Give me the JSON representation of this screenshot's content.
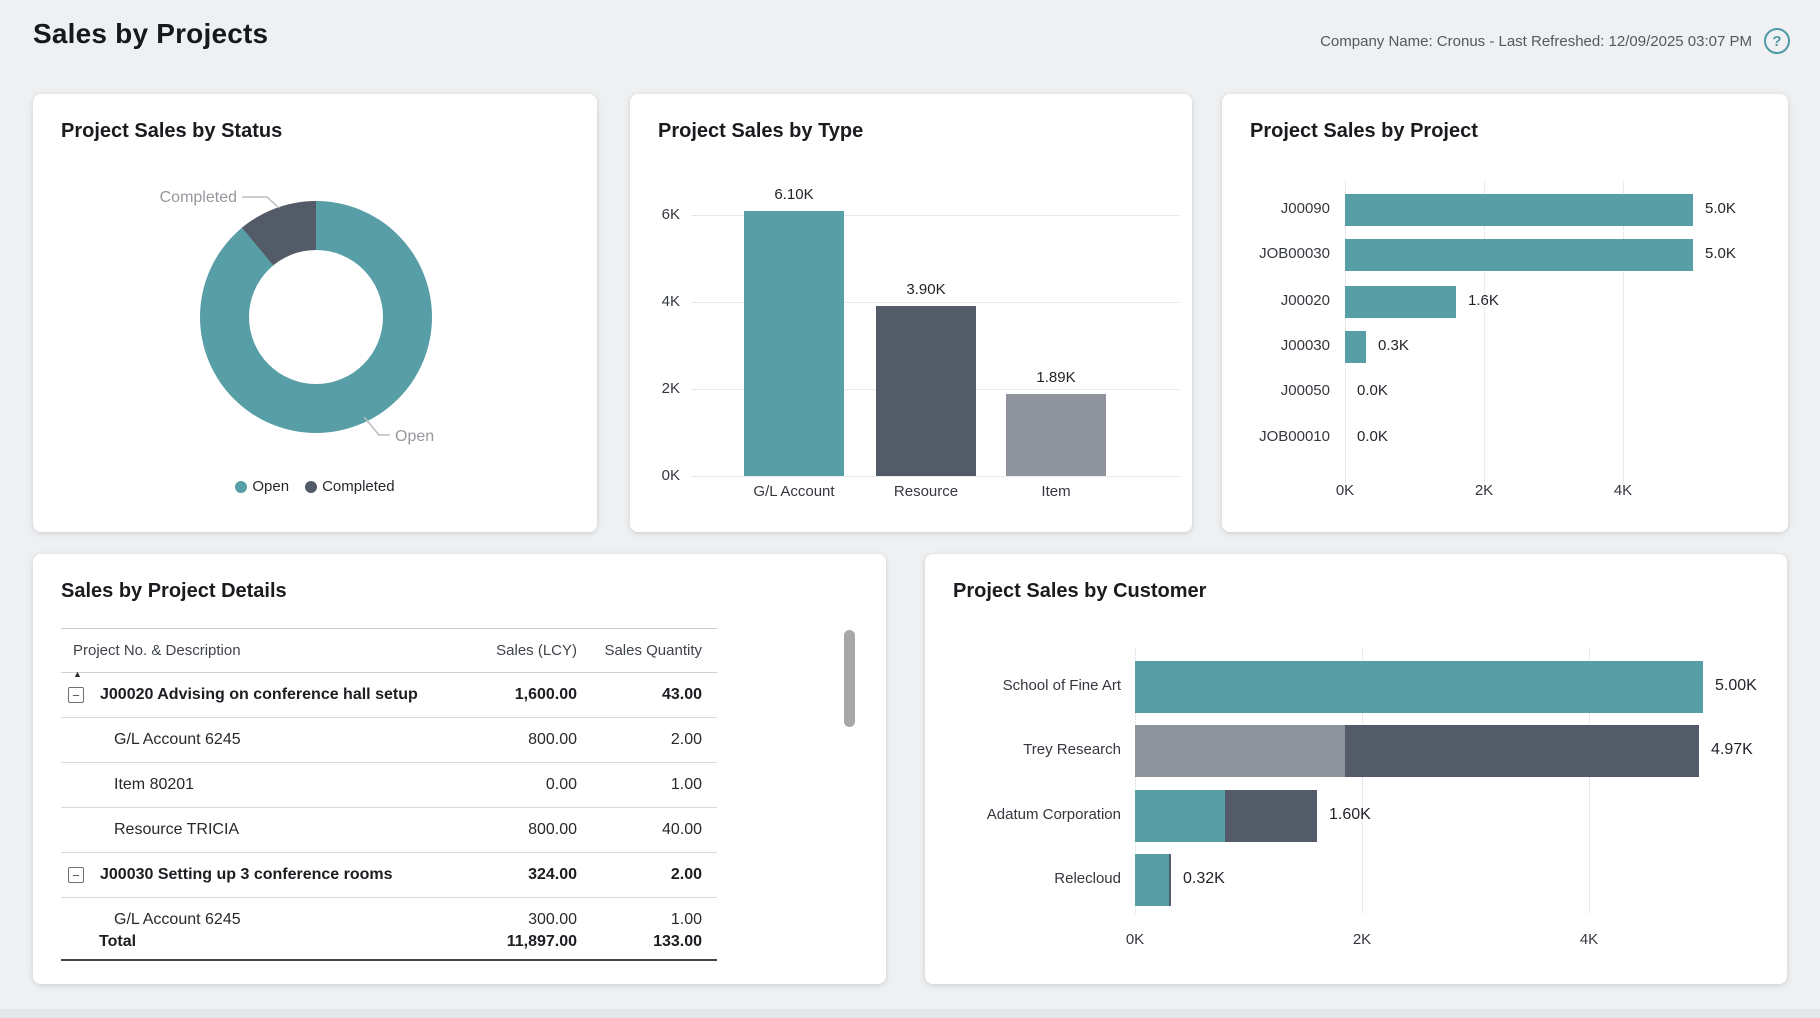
{
  "header": {
    "title": "Sales by Projects",
    "meta": "Company Name: Cronus - Last Refreshed: 12/09/2025 03:07 PM",
    "help_icon": "question-mark-circle-icon"
  },
  "colors": {
    "teal": "#579EA7",
    "dark_slate": "#535A68",
    "gray": "#8F939E",
    "page_background": "#EEF0F2",
    "card_background": "#FFFFFF",
    "grid_line": "#D5D7DA",
    "callout_line": "#BABCBF"
  },
  "chart_data": [
    {
      "id": "project-sales-by-status",
      "type": "pie",
      "title": "Project Sales by Status",
      "labels": [
        "Open",
        "Completed"
      ],
      "values_percent": [
        89,
        11
      ],
      "slice_colors": [
        "teal",
        "dark_slate"
      ],
      "legend": [
        "Open",
        "Completed"
      ],
      "legend_position": "bottom",
      "callout_labels": [
        "Completed",
        "Open"
      ]
    },
    {
      "id": "project-sales-by-type",
      "type": "bar",
      "title": "Project Sales by Type",
      "categories": [
        "G/L Account",
        "Resource",
        "Item"
      ],
      "values": [
        6100,
        3900,
        1890
      ],
      "value_labels": [
        "6.10K",
        "3.90K",
        "1.89K"
      ],
      "bar_colors": [
        "teal",
        "dark_slate",
        "gray"
      ],
      "yticks": [
        "0K",
        "2K",
        "4K",
        "6K"
      ],
      "ylim": [
        0,
        6600
      ],
      "grid": "dotted-horizontal"
    },
    {
      "id": "project-sales-by-project",
      "type": "bar-horizontal",
      "title": "Project Sales by Project",
      "categories": [
        "J00090",
        "JOB00030",
        "J00020",
        "J00030",
        "J00050",
        "JOB00010"
      ],
      "values": [
        5000,
        5000,
        1600,
        300,
        0,
        0
      ],
      "value_labels": [
        "5.0K",
        "5.0K",
        "1.6K",
        "0.3K",
        "0.0K",
        "0.0K"
      ],
      "bar_color": "teal",
      "xticks": [
        "0K",
        "2K",
        "4K"
      ],
      "xlim": [
        0,
        6200
      ],
      "grid": "dotted-vertical"
    },
    {
      "id": "sales-by-project-details",
      "type": "table",
      "title": "Sales by Project Details",
      "columns": [
        "Project No. & Description",
        "Sales (LCY)",
        "Sales Quantity"
      ],
      "sort_indicator": {
        "column": "Project No. & Description",
        "direction": "ascending",
        "glyph": "▲"
      },
      "rows": [
        {
          "level": "group",
          "expander": "collapse",
          "description": "J00020 Advising on conference hall setup",
          "sales_lcy": "1,600.00",
          "sales_quantity": "43.00"
        },
        {
          "level": "detail",
          "description": "G/L Account 6245",
          "sales_lcy": "800.00",
          "sales_quantity": "2.00"
        },
        {
          "level": "detail",
          "description": "Item 80201",
          "sales_lcy": "0.00",
          "sales_quantity": "1.00"
        },
        {
          "level": "detail",
          "description": "Resource TRICIA",
          "sales_lcy": "800.00",
          "sales_quantity": "40.00"
        },
        {
          "level": "group",
          "expander": "collapse",
          "description": "J00030 Setting up 3 conference rooms",
          "sales_lcy": "324.00",
          "sales_quantity": "2.00"
        },
        {
          "level": "detail",
          "description": "G/L Account 6245",
          "sales_lcy": "300.00",
          "sales_quantity": "1.00",
          "clipped": true
        }
      ],
      "total_row": {
        "label": "Total",
        "sales_lcy": "11,897.00",
        "sales_quantity": "133.00"
      }
    },
    {
      "id": "project-sales-by-customer",
      "type": "bar-horizontal-stacked",
      "title": "Project Sales by Customer",
      "categories": [
        "School of Fine Art",
        "Trey Research",
        "Adatum Corporation",
        "Relecloud"
      ],
      "bars": [
        {
          "label": "School of Fine Art",
          "total_label": "5.00K",
          "segments": [
            {
              "value": 5000,
              "color": "teal"
            }
          ]
        },
        {
          "label": "Trey Research",
          "total_label": "4.97K",
          "segments": [
            {
              "value": 1850,
              "color": "gray"
            },
            {
              "value": 3120,
              "color": "dark_slate"
            }
          ]
        },
        {
          "label": "Adatum Corporation",
          "total_label": "1.60K",
          "segments": [
            {
              "value": 790,
              "color": "teal"
            },
            {
              "value": 810,
              "color": "dark_slate"
            }
          ]
        },
        {
          "label": "Relecloud",
          "total_label": "0.32K",
          "segments": [
            {
              "value": 300,
              "color": "teal"
            },
            {
              "value": 20,
              "color": "dark_slate"
            }
          ]
        }
      ],
      "xticks": [
        "0K",
        "2K",
        "4K"
      ],
      "xlim": [
        0,
        5200
      ],
      "grid": "dotted-vertical"
    }
  ]
}
